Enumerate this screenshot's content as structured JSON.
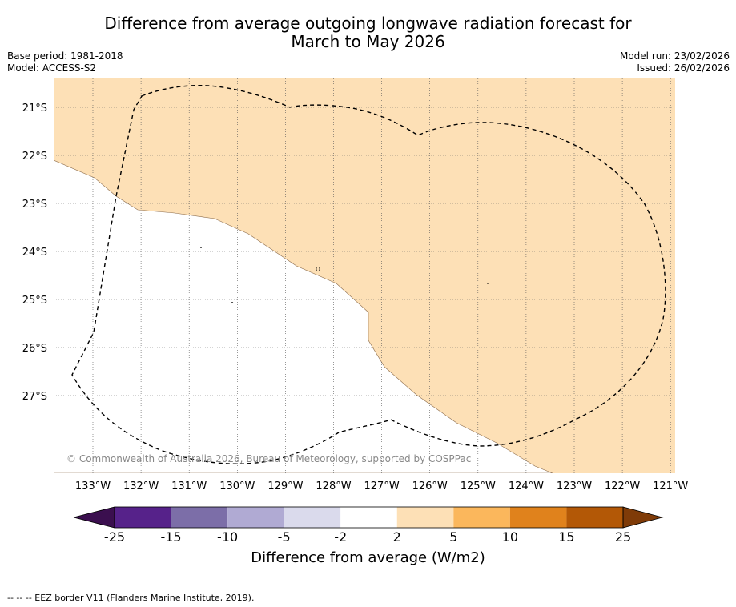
{
  "title": {
    "line1": "Difference from average outgoing longwave radiation forecast for",
    "line2": "March to May 2026"
  },
  "meta_left": {
    "base_period": "Base period: 1981-2018",
    "model": "Model: ACCESS-S2"
  },
  "meta_right": {
    "model_run": "Model run: 23/02/2026",
    "issued": "Issued: 26/02/2026"
  },
  "map": {
    "lat_labels": [
      "21°S",
      "22°S",
      "23°S",
      "24°S",
      "25°S",
      "26°S",
      "27°S"
    ],
    "lon_labels": [
      "133°W",
      "132°W",
      "131°W",
      "130°W",
      "129°W",
      "128°W",
      "127°W",
      "126°W",
      "125°W",
      "124°W",
      "123°W",
      "122°W",
      "121°W"
    ],
    "copyright": "© Commonwealth of Australia 2026, Bureau of Meteorology, supported by COSPPac",
    "fill_color_main": "#fde0b6",
    "fill_color_neutral": "#ffffff",
    "eez_line_color": "#000000"
  },
  "colorbar": {
    "tick_labels": [
      "-25",
      "-15",
      "-10",
      "-5",
      "-2",
      "2",
      "5",
      "10",
      "15",
      "25"
    ],
    "colors": [
      "#3b0f4f",
      "#56228a",
      "#7c6ea8",
      "#b0aad3",
      "#dadaec",
      "#ffffff",
      "#fde0b6",
      "#fbb75c",
      "#e0821c",
      "#b35806",
      "#7f3b08"
    ],
    "title": "Difference from average (W/m2)"
  },
  "footer": {
    "legend": "--  --  -- EEZ border V11 (Flanders Marine Institute, 2019)."
  }
}
